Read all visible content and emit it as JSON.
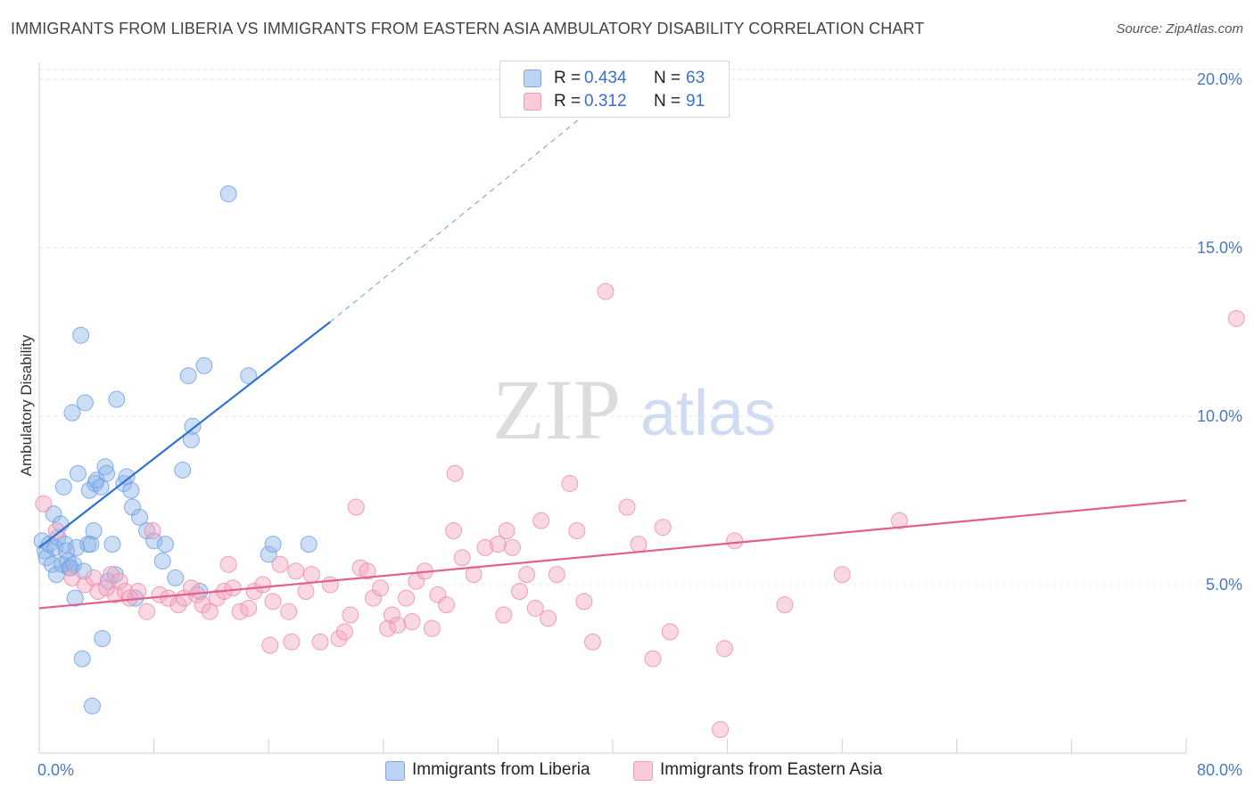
{
  "header": {
    "title": "IMMIGRANTS FROM LIBERIA VS IMMIGRANTS FROM EASTERN ASIA AMBULATORY DISABILITY CORRELATION CHART",
    "source": "Source: ZipAtlas.com"
  },
  "watermark": {
    "zip": "ZIP",
    "atlas": "atlas"
  },
  "legend": {
    "rows": [
      {
        "r_label": "R =",
        "r_value": "0.434",
        "n_label": "N =",
        "n_value": "63",
        "color": "#8fb5ea"
      },
      {
        "r_label": "R =",
        "r_value": "0.312",
        "n_label": "N =",
        "n_value": "91",
        "color": "#f4a8c1"
      }
    ]
  },
  "bottom_legend": {
    "items": [
      {
        "label": "Immigrants from Liberia",
        "color": "#8fb5ea"
      },
      {
        "label": "Immigrants from Eastern Asia",
        "color": "#f4a8c1"
      }
    ]
  },
  "chart_data": {
    "type": "scatter",
    "title": "IMMIGRANTS FROM LIBERIA VS IMMIGRANTS FROM EASTERN ASIA AMBULATORY DISABILITY CORRELATION CHART",
    "xlabel": "",
    "ylabel": "Ambulatory Disability",
    "xlim": [
      0,
      80
    ],
    "ylim": [
      0,
      20.5
    ],
    "x_tick_labels": [
      {
        "value": 0,
        "label": "0.0%"
      },
      {
        "value": 80,
        "label": "80.0%"
      }
    ],
    "y_tick_labels": [
      {
        "value": 5,
        "label": "5.0%"
      },
      {
        "value": 10,
        "label": "10.0%"
      },
      {
        "value": 15,
        "label": "15.0%"
      },
      {
        "value": 20,
        "label": "20.0%"
      }
    ],
    "x_minor_ticks": [
      0,
      8,
      16,
      24,
      32,
      40,
      48,
      56,
      64,
      72,
      80
    ],
    "grid": true,
    "series": [
      {
        "name": "Immigrants from Liberia",
        "color": "#8fb5ea",
        "stroke": "#6f9be0",
        "trend": {
          "x0": 0,
          "y0": 6.1,
          "x1": 20.3,
          "y1": 12.8,
          "dash_to_x": 40.5,
          "dash_to_y": 19.8,
          "color": "#2f72d0"
        },
        "points": [
          [
            0.2,
            6.3
          ],
          [
            0.4,
            6.0
          ],
          [
            0.5,
            5.8
          ],
          [
            0.7,
            6.2
          ],
          [
            0.9,
            5.6
          ],
          [
            1.0,
            7.1
          ],
          [
            1.1,
            6.1
          ],
          [
            1.2,
            5.3
          ],
          [
            1.3,
            6.4
          ],
          [
            1.5,
            6.8
          ],
          [
            1.6,
            5.6
          ],
          [
            1.7,
            7.9
          ],
          [
            1.8,
            6.2
          ],
          [
            1.9,
            6.0
          ],
          [
            2.0,
            5.7
          ],
          [
            2.1,
            5.5
          ],
          [
            2.2,
            5.5
          ],
          [
            2.3,
            10.1
          ],
          [
            2.4,
            5.6
          ],
          [
            2.5,
            4.6
          ],
          [
            2.6,
            6.1
          ],
          [
            2.7,
            8.3
          ],
          [
            2.9,
            12.4
          ],
          [
            3.0,
            2.8
          ],
          [
            3.1,
            5.4
          ],
          [
            3.2,
            10.4
          ],
          [
            3.4,
            6.2
          ],
          [
            3.5,
            7.8
          ],
          [
            3.6,
            6.2
          ],
          [
            3.7,
            1.4
          ],
          [
            3.8,
            6.6
          ],
          [
            3.9,
            8.0
          ],
          [
            4.0,
            8.1
          ],
          [
            4.3,
            7.9
          ],
          [
            4.4,
            3.4
          ],
          [
            4.6,
            8.5
          ],
          [
            4.7,
            8.3
          ],
          [
            4.8,
            5.1
          ],
          [
            5.1,
            6.2
          ],
          [
            5.3,
            5.3
          ],
          [
            5.4,
            10.5
          ],
          [
            5.9,
            8.0
          ],
          [
            6.1,
            8.2
          ],
          [
            6.4,
            7.8
          ],
          [
            6.5,
            7.3
          ],
          [
            6.7,
            4.6
          ],
          [
            7.0,
            7.0
          ],
          [
            7.5,
            6.6
          ],
          [
            8.0,
            6.3
          ],
          [
            8.8,
            6.2
          ],
          [
            9.5,
            5.2
          ],
          [
            10.0,
            8.4
          ],
          [
            10.4,
            11.2
          ],
          [
            10.6,
            9.3
          ],
          [
            10.7,
            9.7
          ],
          [
            11.2,
            4.8
          ],
          [
            11.5,
            11.5
          ],
          [
            14.6,
            11.2
          ],
          [
            16.0,
            5.9
          ],
          [
            16.3,
            6.2
          ],
          [
            18.8,
            6.2
          ],
          [
            13.2,
            16.6
          ],
          [
            8.6,
            5.7
          ]
        ]
      },
      {
        "name": "Immigrants from Eastern Asia",
        "color": "#f4a8c1",
        "stroke": "#ec8aab",
        "trend": {
          "x0": 0,
          "y0": 4.3,
          "x1": 80,
          "y1": 7.5,
          "color": "#e0608f"
        },
        "points": [
          [
            0.3,
            7.4
          ],
          [
            1.2,
            6.6
          ],
          [
            2.3,
            5.2
          ],
          [
            3.2,
            5.0
          ],
          [
            3.8,
            5.2
          ],
          [
            4.1,
            4.8
          ],
          [
            4.7,
            4.9
          ],
          [
            5.0,
            5.3
          ],
          [
            5.3,
            4.7
          ],
          [
            5.6,
            5.1
          ],
          [
            6.0,
            4.8
          ],
          [
            6.3,
            4.6
          ],
          [
            6.9,
            4.8
          ],
          [
            7.5,
            4.2
          ],
          [
            7.9,
            6.6
          ],
          [
            8.4,
            4.7
          ],
          [
            9.0,
            4.6
          ],
          [
            9.7,
            4.4
          ],
          [
            10.1,
            4.6
          ],
          [
            10.6,
            4.9
          ],
          [
            11.0,
            4.7
          ],
          [
            11.4,
            4.4
          ],
          [
            11.9,
            4.2
          ],
          [
            12.4,
            4.6
          ],
          [
            12.9,
            4.8
          ],
          [
            13.2,
            5.6
          ],
          [
            13.5,
            4.9
          ],
          [
            14.0,
            4.2
          ],
          [
            14.6,
            4.3
          ],
          [
            15.0,
            4.8
          ],
          [
            15.6,
            5.0
          ],
          [
            16.1,
            3.2
          ],
          [
            16.3,
            4.5
          ],
          [
            16.8,
            5.6
          ],
          [
            17.4,
            4.2
          ],
          [
            17.9,
            5.4
          ],
          [
            18.6,
            4.8
          ],
          [
            19.0,
            5.3
          ],
          [
            19.6,
            3.3
          ],
          [
            20.3,
            5.0
          ],
          [
            20.9,
            3.4
          ],
          [
            21.3,
            3.6
          ],
          [
            21.7,
            4.1
          ],
          [
            22.1,
            7.3
          ],
          [
            22.4,
            5.5
          ],
          [
            22.9,
            5.4
          ],
          [
            23.3,
            4.6
          ],
          [
            23.8,
            4.9
          ],
          [
            24.3,
            3.7
          ],
          [
            24.6,
            4.1
          ],
          [
            25.0,
            3.8
          ],
          [
            25.6,
            4.6
          ],
          [
            26.3,
            5.1
          ],
          [
            26.9,
            5.4
          ],
          [
            27.4,
            3.7
          ],
          [
            27.8,
            4.7
          ],
          [
            28.4,
            4.4
          ],
          [
            28.9,
            6.6
          ],
          [
            29.5,
            5.8
          ],
          [
            30.3,
            5.3
          ],
          [
            31.1,
            6.1
          ],
          [
            32.0,
            6.2
          ],
          [
            32.6,
            6.6
          ],
          [
            33.0,
            6.1
          ],
          [
            33.5,
            4.8
          ],
          [
            34.0,
            5.3
          ],
          [
            34.6,
            4.3
          ],
          [
            35.0,
            6.9
          ],
          [
            35.5,
            4.0
          ],
          [
            36.1,
            5.3
          ],
          [
            37.0,
            8.0
          ],
          [
            37.5,
            6.6
          ],
          [
            38.0,
            4.5
          ],
          [
            38.6,
            3.3
          ],
          [
            39.5,
            13.7
          ],
          [
            41.0,
            7.3
          ],
          [
            41.8,
            6.2
          ],
          [
            42.8,
            2.8
          ],
          [
            43.5,
            6.7
          ],
          [
            44.0,
            3.6
          ],
          [
            47.8,
            3.1
          ],
          [
            48.5,
            6.3
          ],
          [
            52.0,
            4.4
          ],
          [
            56.0,
            5.3
          ],
          [
            60.0,
            6.9
          ],
          [
            83.5,
            12.9
          ],
          [
            26.0,
            3.9
          ],
          [
            29.0,
            8.3
          ],
          [
            32.4,
            4.1
          ],
          [
            47.5,
            0.7
          ],
          [
            17.6,
            3.3
          ]
        ]
      }
    ]
  }
}
